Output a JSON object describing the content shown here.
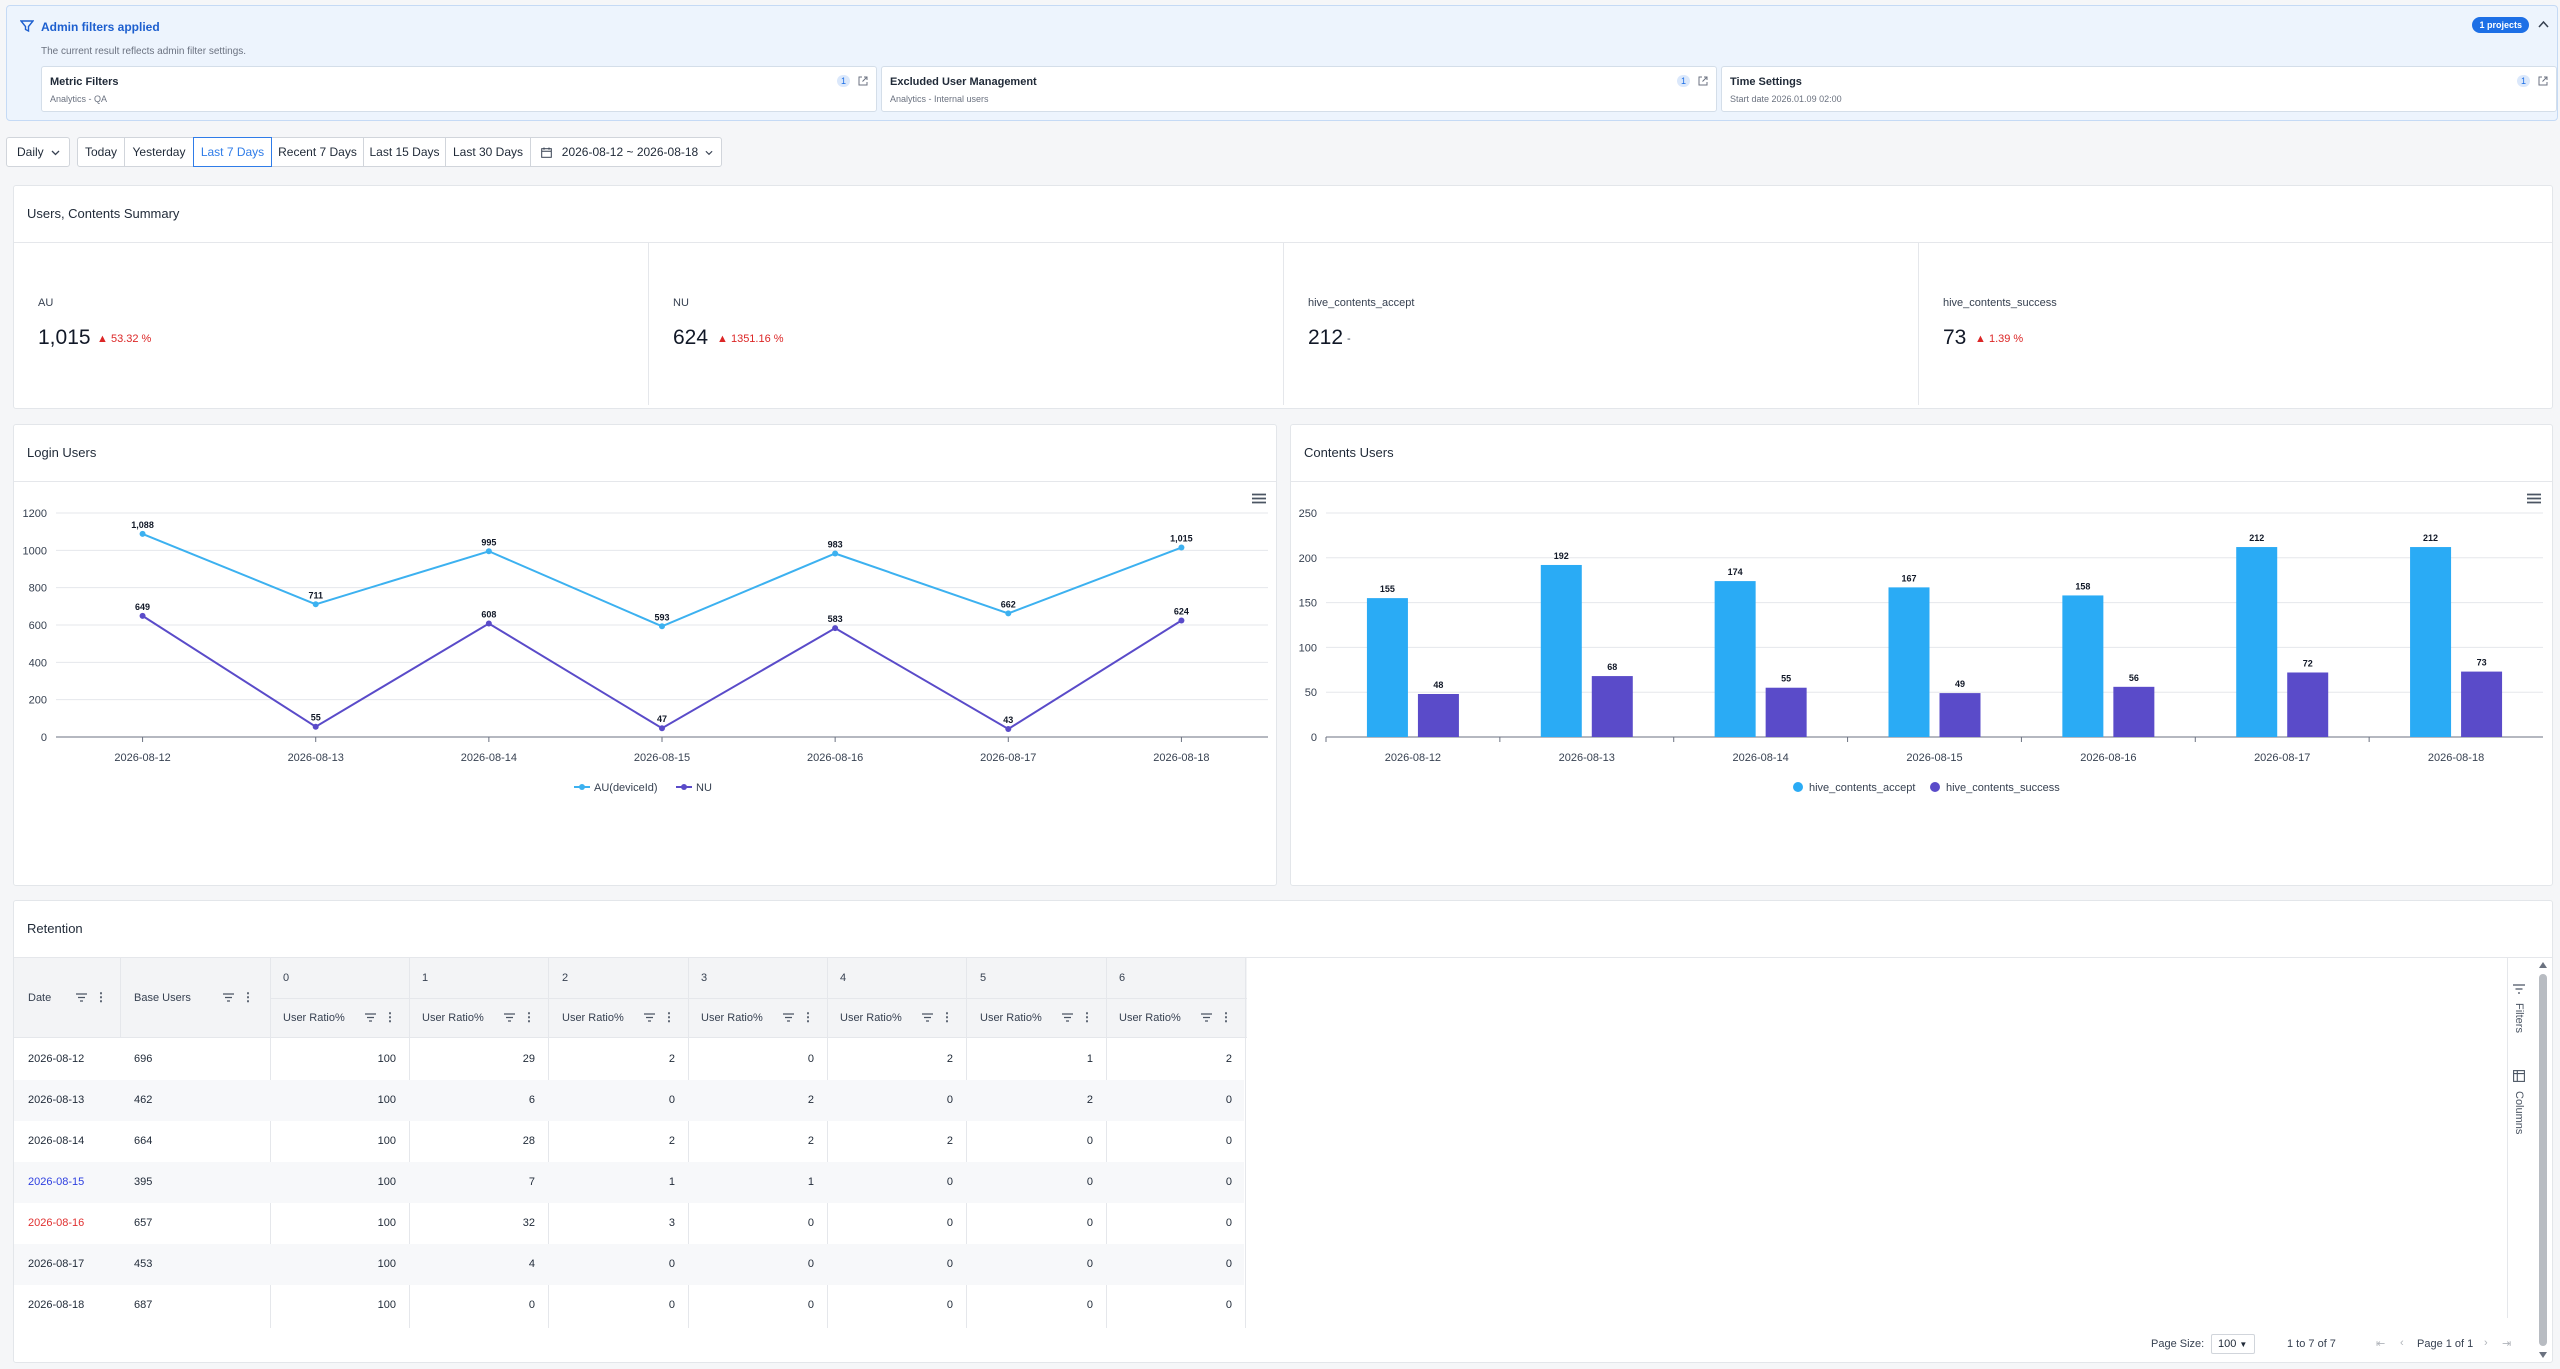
{
  "admin_banner": {
    "title": "Admin filters applied",
    "subtitle": "The current result reflects admin filter settings.",
    "badge": "1 projects",
    "cards": [
      {
        "title": "Metric Filters",
        "subtitle": "Analytics - QA",
        "count": "1"
      },
      {
        "title": "Excluded User Management",
        "subtitle": "Analytics - Internal users",
        "count": "1"
      },
      {
        "title": "Time Settings",
        "subtitle": "Start date 2026.01.09 02:00",
        "count": "1"
      }
    ]
  },
  "toolbar": {
    "granularity": "Daily",
    "ranges": [
      "Today",
      "Yesterday",
      "Last 7 Days",
      "Recent 7 Days",
      "Last 15 Days",
      "Last 30 Days"
    ],
    "selected_range": "Last 7 Days",
    "date_range": "2026-08-12 ~ 2026-08-18"
  },
  "summary": {
    "title": "Users, Contents Summary",
    "stats": [
      {
        "label": "AU",
        "value": "1,015",
        "delta": "53.32 %",
        "trend": "up"
      },
      {
        "label": "NU",
        "value": "624",
        "delta": "1351.16 %",
        "trend": "up"
      },
      {
        "label": "hive_contents_accept",
        "value": "212",
        "delta": "-",
        "trend": "none"
      },
      {
        "label": "hive_contents_success",
        "value": "73",
        "delta": "1.39 %",
        "trend": "up"
      }
    ]
  },
  "login_panel": {
    "title": "Login Users"
  },
  "contents_panel": {
    "title": "Contents Users"
  },
  "chart_data": [
    {
      "type": "line",
      "title": "Login Users",
      "x": [
        "2026-08-12",
        "2026-08-13",
        "2026-08-14",
        "2026-08-15",
        "2026-08-16",
        "2026-08-17",
        "2026-08-18"
      ],
      "ylim": [
        0,
        1200
      ],
      "yticks": [
        0,
        200,
        400,
        600,
        800,
        1000,
        1200
      ],
      "grid": true,
      "legend": "bottom",
      "series": [
        {
          "name": "AU(deviceId)",
          "color": "#3cb1f0",
          "values": [
            1088,
            711,
            995,
            593,
            983,
            662,
            1015
          ]
        },
        {
          "name": "NU",
          "color": "#5a4bc9",
          "values": [
            649,
            55,
            608,
            47,
            583,
            43,
            624
          ]
        }
      ]
    },
    {
      "type": "bar",
      "title": "Contents Users",
      "categories": [
        "2026-08-12",
        "2026-08-13",
        "2026-08-14",
        "2026-08-15",
        "2026-08-16",
        "2026-08-17",
        "2026-08-18"
      ],
      "ylim": [
        0,
        250
      ],
      "yticks": [
        0,
        50,
        100,
        150,
        200,
        250
      ],
      "grid": true,
      "legend": "bottom",
      "series": [
        {
          "name": "hive_contents_accept",
          "color": "#2aabf5",
          "values": [
            155,
            192,
            174,
            167,
            158,
            212,
            212
          ]
        },
        {
          "name": "hive_contents_success",
          "color": "#5a4bc9",
          "values": [
            48,
            68,
            55,
            49,
            56,
            72,
            73
          ]
        }
      ]
    }
  ],
  "retention": {
    "title": "Retention",
    "date_header": "Date",
    "base_header": "Base Users",
    "day_headers": [
      "0",
      "1",
      "2",
      "3",
      "4",
      "5",
      "6"
    ],
    "sub_header": "User Ratio%",
    "rows": [
      {
        "date": "2026-08-12",
        "base": "696",
        "ratios": [
          "100",
          "29",
          "2",
          "0",
          "2",
          "1",
          "2"
        ],
        "date_color": "#1f2937"
      },
      {
        "date": "2026-08-13",
        "base": "462",
        "ratios": [
          "100",
          "6",
          "0",
          "2",
          "0",
          "2",
          "0"
        ],
        "date_color": "#1f2937"
      },
      {
        "date": "2026-08-14",
        "base": "664",
        "ratios": [
          "100",
          "28",
          "2",
          "2",
          "2",
          "0",
          "0"
        ],
        "date_color": "#1f2937"
      },
      {
        "date": "2026-08-15",
        "base": "395",
        "ratios": [
          "100",
          "7",
          "1",
          "1",
          "0",
          "0",
          "0"
        ],
        "date_color": "#2e3fe0"
      },
      {
        "date": "2026-08-16",
        "base": "657",
        "ratios": [
          "100",
          "32",
          "3",
          "0",
          "0",
          "0",
          "0"
        ],
        "date_color": "#e03131"
      },
      {
        "date": "2026-08-17",
        "base": "453",
        "ratios": [
          "100",
          "4",
          "0",
          "0",
          "0",
          "0",
          "0"
        ],
        "date_color": "#1f2937"
      },
      {
        "date": "2026-08-18",
        "base": "687",
        "ratios": [
          "100",
          "0",
          "0",
          "0",
          "0",
          "0",
          "0"
        ],
        "date_color": "#1f2937"
      }
    ],
    "side_tabs": [
      "Filters",
      "Columns"
    ],
    "pagination": {
      "page_size_label": "Page Size:",
      "page_size": "100",
      "range": "1 to 7 of 7",
      "page": "Page 1 of 1"
    }
  }
}
